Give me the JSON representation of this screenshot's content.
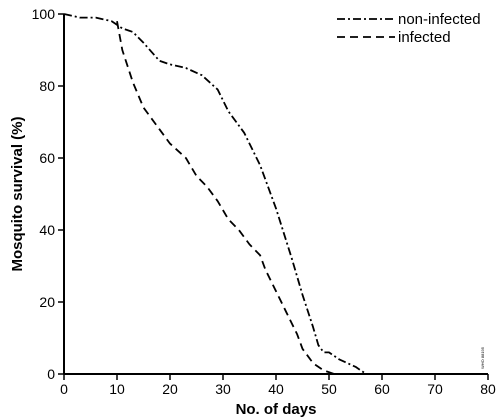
{
  "chart_data": {
    "type": "line",
    "title": "",
    "xlabel": "No. of days",
    "ylabel": "Mosquito survival (%)",
    "xlim": [
      0,
      80
    ],
    "ylim": [
      0,
      100
    ],
    "xticks": [
      0,
      10,
      20,
      30,
      40,
      50,
      60,
      70,
      80
    ],
    "yticks": [
      0,
      20,
      40,
      60,
      80,
      100
    ],
    "grid": false,
    "legend_position": "top-right",
    "series": [
      {
        "name": "non-infected",
        "line_style": "dash-dot",
        "color": "#000000",
        "x": [
          0,
          3,
          6,
          9,
          11,
          13,
          15,
          18,
          20,
          23,
          26,
          29,
          31,
          34,
          37,
          40,
          43,
          45,
          47,
          48,
          49,
          50,
          52,
          55,
          57
        ],
        "y": [
          100,
          99,
          99,
          98,
          96,
          95,
          92,
          87,
          86,
          85,
          83,
          79,
          73,
          67,
          58,
          46,
          32,
          22,
          13,
          8,
          6,
          6,
          4,
          2,
          0
        ]
      },
      {
        "name": "infected",
        "line_style": "dashed",
        "color": "#000000",
        "x": [
          10,
          11,
          13,
          15,
          18,
          20,
          23,
          25,
          27,
          29,
          31,
          33,
          35,
          37,
          38,
          40,
          42,
          44,
          45,
          47,
          49,
          51,
          54
        ],
        "y": [
          98,
          90,
          81,
          74,
          68,
          64,
          60,
          55,
          52,
          48,
          43,
          40,
          36,
          33,
          29,
          23,
          17,
          11,
          7,
          3,
          1,
          0,
          0
        ]
      }
    ],
    "annotation": "WHO 88195"
  }
}
